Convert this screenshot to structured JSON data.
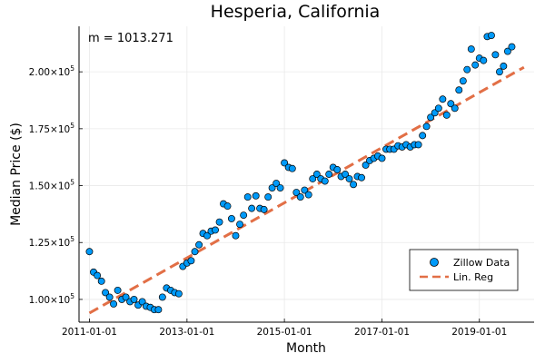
{
  "chart_data": {
    "type": "scatter",
    "title": "Hesperia, California",
    "xlabel": "Month",
    "ylabel": "Median Price ($)",
    "annotation": "m = 1013.271",
    "xlim": [
      "2010-10-15",
      "2020-02-15"
    ],
    "ylim": [
      90000,
      220000
    ],
    "x_ticks": [
      "2011-01-01",
      "2013-01-01",
      "2015-01-01",
      "2017-01-01",
      "2019-01-01"
    ],
    "y_ticks": [
      {
        "value": 100000,
        "mantissa": "1.00",
        "exp": "5"
      },
      {
        "value": 125000,
        "mantissa": "1.25",
        "exp": "5"
      },
      {
        "value": 150000,
        "mantissa": "1.50",
        "exp": "5"
      },
      {
        "value": 175000,
        "mantissa": "1.75",
        "exp": "5"
      },
      {
        "value": 200000,
        "mantissa": "2.00",
        "exp": "5"
      }
    ],
    "tick_times_sign": "×",
    "tick_base": "10",
    "grid": true,
    "legend_position": "bottom-right",
    "series": [
      {
        "name": "Zillow Data",
        "kind": "scatter",
        "color": "#009af9",
        "start": "2011-01-01",
        "frequency": "monthly",
        "values": [
          121000,
          112000,
          110500,
          108000,
          103000,
          101000,
          98000,
          104000,
          100000,
          101000,
          99000,
          100000,
          97500,
          99000,
          97000,
          96500,
          95500,
          95500,
          101000,
          105000,
          104000,
          103000,
          102500,
          114500,
          116000,
          117000,
          121000,
          124000,
          129000,
          128000,
          130000,
          130500,
          134000,
          142000,
          141000,
          135500,
          128000,
          133000,
          137000,
          145000,
          140000,
          145500,
          140000,
          139500,
          145000,
          149000,
          151000,
          149000,
          160000,
          158000,
          157500,
          147000,
          145000,
          148000,
          146000,
          153000,
          155000,
          153000,
          152000,
          155000,
          158000,
          157000,
          154000,
          155000,
          153000,
          150500,
          154000,
          153500,
          159000,
          161000,
          162000,
          163000,
          162000,
          166000,
          166000,
          166000,
          167500,
          167000,
          168000,
          167000,
          168000,
          168000,
          172000,
          176000,
          180000,
          182000,
          184000,
          188000,
          181000,
          186000,
          184000,
          192000,
          196000,
          201000,
          210000,
          203000,
          206000,
          205000,
          215500,
          216000,
          207500,
          200000,
          202500,
          209000,
          211000
        ]
      },
      {
        "name": "Lin. Reg",
        "kind": "line",
        "color": "#e26f46",
        "x": [
          "2011-01-01",
          "2019-12-01"
        ],
        "values": [
          94000,
          202000
        ]
      }
    ]
  }
}
